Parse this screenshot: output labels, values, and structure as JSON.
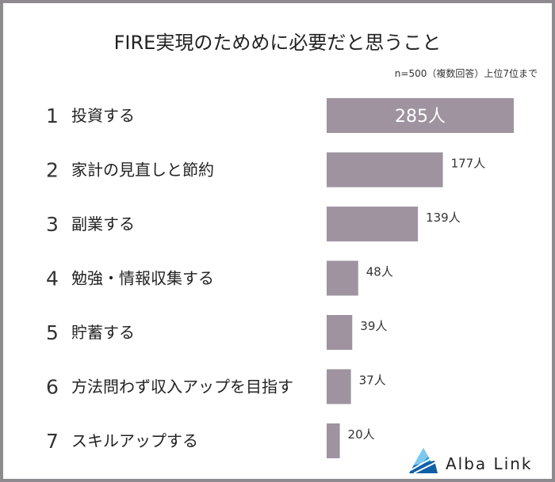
{
  "chart_data": {
    "type": "bar",
    "title": "FIRE実現のためめに必要だと思うこと",
    "note": "n=500（複数回答）上位7位まで",
    "unit": "人",
    "categories": [
      "投資する",
      "家計の見直しと節約",
      "副業する",
      "勉強・情報収集する",
      "貯蓄する",
      "方法問わず収入アップを目指す",
      "スキルアップする"
    ],
    "ranks": [
      "1",
      "2",
      "3",
      "4",
      "5",
      "6",
      "7"
    ],
    "values": [
      285,
      177,
      139,
      48,
      39,
      37,
      20
    ],
    "value_labels": [
      "285人",
      "177人",
      "139人",
      "48人",
      "39人",
      "37人",
      "20人"
    ],
    "xlim": [
      0,
      300
    ],
    "orientation": "horizontal",
    "bar_color": "#9e939f",
    "grid": false,
    "legend": "none"
  },
  "brand": {
    "name": "Alba Link",
    "icon": "alba-link-logo-icon",
    "colors": [
      "#1a9ad6",
      "#0f5fa8",
      "#7cc8ee"
    ]
  }
}
